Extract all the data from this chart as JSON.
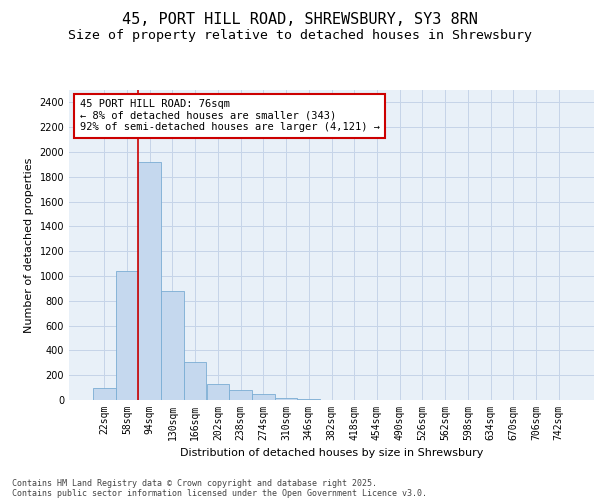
{
  "title_line1": "45, PORT HILL ROAD, SHREWSBURY, SY3 8RN",
  "title_line2": "Size of property relative to detached houses in Shrewsbury",
  "xlabel": "Distribution of detached houses by size in Shrewsbury",
  "ylabel": "Number of detached properties",
  "bar_color": "#c5d8ee",
  "bar_edge_color": "#7aadd4",
  "categories": [
    "22sqm",
    "58sqm",
    "94sqm",
    "130sqm",
    "166sqm",
    "202sqm",
    "238sqm",
    "274sqm",
    "310sqm",
    "346sqm",
    "382sqm",
    "418sqm",
    "454sqm",
    "490sqm",
    "526sqm",
    "562sqm",
    "598sqm",
    "634sqm",
    "670sqm",
    "706sqm",
    "742sqm"
  ],
  "values": [
    100,
    1040,
    1920,
    880,
    310,
    130,
    80,
    52,
    20,
    10,
    3,
    0,
    0,
    0,
    0,
    0,
    0,
    0,
    0,
    0,
    0
  ],
  "ylim": [
    0,
    2500
  ],
  "yticks": [
    0,
    200,
    400,
    600,
    800,
    1000,
    1200,
    1400,
    1600,
    1800,
    2000,
    2200,
    2400
  ],
  "annotation_text": "45 PORT HILL ROAD: 76sqm\n← 8% of detached houses are smaller (343)\n92% of semi-detached houses are larger (4,121) →",
  "annotation_box_facecolor": "#ffffff",
  "annotation_box_edgecolor": "#cc0000",
  "red_line_color": "#cc0000",
  "grid_color": "#c5d4e8",
  "background_color": "#e8f0f8",
  "footer_line1": "Contains HM Land Registry data © Crown copyright and database right 2025.",
  "footer_line2": "Contains public sector information licensed under the Open Government Licence v3.0.",
  "title_fontsize": 11,
  "subtitle_fontsize": 9.5,
  "tick_fontsize": 7,
  "ylabel_fontsize": 8,
  "xlabel_fontsize": 8,
  "annotation_fontsize": 7.5,
  "footer_fontsize": 6
}
